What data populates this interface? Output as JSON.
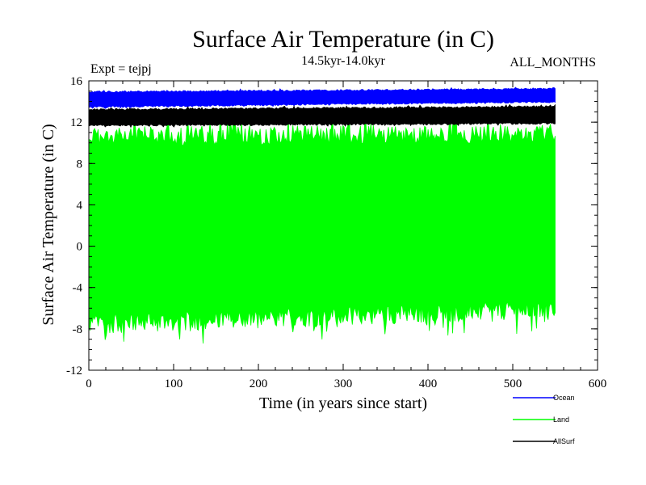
{
  "chart_data": {
    "type": "line",
    "title": "Surface Air Temperature (in C)",
    "subtitle": "14.5kyr-14.0kyr",
    "expt_label": "Expt = tejpj",
    "months_label": "ALL_MONTHS",
    "xlabel": "Time (in years since start)",
    "ylabel": "Surface Air Temperature (in C)",
    "xlim": [
      0,
      600
    ],
    "ylim": [
      -12,
      16
    ],
    "x_ticks": [
      0,
      100,
      200,
      300,
      400,
      500,
      600
    ],
    "y_ticks": [
      -12,
      -8,
      -4,
      0,
      4,
      8,
      12,
      16
    ],
    "x_minor_step": 20,
    "y_minor_step": 1,
    "x_data_range": [
      0,
      550
    ],
    "legend_position": "bottom-right",
    "series": [
      {
        "name": "Ocean",
        "color": "#0000ff",
        "band_start": [
          13.4,
          15.0
        ],
        "band_end": [
          13.9,
          15.3
        ]
      },
      {
        "name": "Land",
        "color": "#00ff00",
        "band_start": [
          -8.5,
          11.6
        ],
        "band_end": [
          -7.0,
          11.8
        ]
      },
      {
        "name": "AllSurf",
        "color": "#000000",
        "band_start": [
          11.6,
          13.3
        ],
        "band_end": [
          11.8,
          13.6
        ]
      }
    ]
  }
}
